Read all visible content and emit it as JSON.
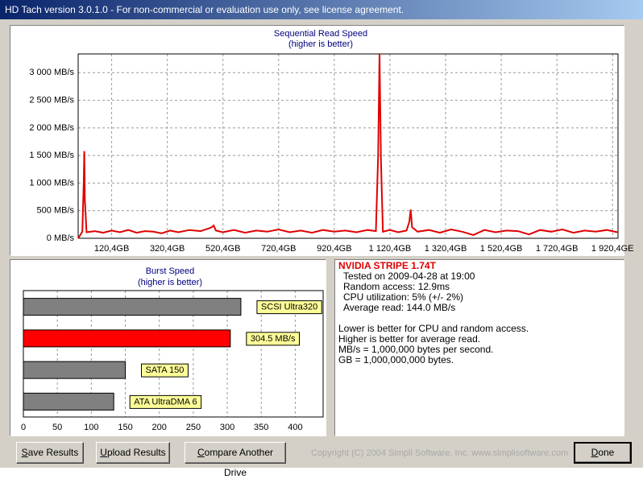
{
  "window": {
    "title": "HD Tach version 3.0.1.0  - For non-commercial or evaluation use only, see license agreement."
  },
  "chart_data": [
    {
      "type": "line",
      "title": "Sequential Read Speed",
      "subtitle": "(higher is better)",
      "color": "#e00000",
      "grid": true,
      "x": [
        0,
        15,
        20,
        22,
        24,
        30,
        60,
        90,
        120,
        150,
        180,
        210,
        240,
        270,
        300,
        330,
        360,
        400,
        440,
        470,
        480,
        487,
        495,
        520,
        560,
        600,
        640,
        680,
        720,
        760,
        800,
        840,
        880,
        920,
        960,
        1000,
        1040,
        1070,
        1078,
        1083,
        1088,
        1095,
        1120,
        1150,
        1180,
        1190,
        1195,
        1200,
        1220,
        1260,
        1300,
        1340,
        1380,
        1420,
        1460,
        1500,
        1540,
        1580,
        1620,
        1660,
        1700,
        1740,
        1780,
        1820,
        1860,
        1900,
        1938
      ],
      "values": [
        0,
        120,
        1000,
        1580,
        700,
        110,
        130,
        100,
        140,
        110,
        150,
        100,
        130,
        120,
        90,
        140,
        110,
        150,
        130,
        180,
        200,
        230,
        140,
        110,
        150,
        100,
        140,
        120,
        160,
        110,
        140,
        100,
        150,
        120,
        140,
        110,
        150,
        130,
        1500,
        3340,
        1400,
        120,
        150,
        110,
        140,
        300,
        520,
        200,
        120,
        150,
        100,
        160,
        120,
        60,
        150,
        110,
        140,
        130,
        70,
        150,
        120,
        160,
        100,
        140,
        120,
        150,
        110
      ],
      "xlim": [
        0,
        1940
      ],
      "ylim": [
        0,
        3340
      ],
      "xticks": [
        {
          "value": 120.4,
          "label": "120,4GB"
        },
        {
          "value": 320.4,
          "label": "320,4GB"
        },
        {
          "value": 520.4,
          "label": "520,4GB"
        },
        {
          "value": 720.4,
          "label": "720,4GB"
        },
        {
          "value": 920.4,
          "label": "920,4GB"
        },
        {
          "value": 1120.4,
          "label": "1 120,4GB"
        },
        {
          "value": 1320.4,
          "label": "1 320,4GB"
        },
        {
          "value": 1520.4,
          "label": "1 520,4GB"
        },
        {
          "value": 1720.4,
          "label": "1 720,4GB"
        },
        {
          "value": 1920.4,
          "label": "1 920,4GE"
        }
      ],
      "yticks": [
        {
          "value": 0,
          "label": "0 MB/s"
        },
        {
          "value": 500,
          "label": "500 MB/s"
        },
        {
          "value": 1000,
          "label": "1 000 MB/s"
        },
        {
          "value": 1500,
          "label": "1 500 MB/s"
        },
        {
          "value": 2000,
          "label": "2 000 MB/s"
        },
        {
          "value": 2500,
          "label": "2 500 MB/s"
        },
        {
          "value": 3000,
          "label": "3 000 MB/s"
        }
      ]
    },
    {
      "type": "hbar",
      "title": "Burst Speed",
      "subtitle": "(higher is better)",
      "grid": true,
      "labels": [
        "SCSI Ultra320",
        "304.5 MB/s",
        "SATA 150",
        "ATA UltraDMA 6"
      ],
      "values": [
        320,
        304.5,
        150,
        133
      ],
      "colors": [
        "#808080",
        "#ff0000",
        "#808080",
        "#808080"
      ],
      "xlim": [
        0,
        441
      ],
      "xticks": [
        0,
        50,
        100,
        150,
        200,
        250,
        300,
        350,
        400
      ]
    }
  ],
  "info": {
    "drive": "NVIDIA STRIPE 1.74T",
    "details": [
      "Tested on 2009-04-28 at 19:00",
      "Random access: 12.9ms",
      "CPU utilization: 5% (+/- 2%)",
      "Average read: 144.0 MB/s"
    ],
    "notes": [
      "Lower is better for CPU and random access.",
      "Higher is better for average read.",
      "MB/s = 1,000,000 bytes per second.",
      "GB = 1,000,000,000 bytes."
    ]
  },
  "buttons": [
    "Save Results",
    "Upload Results",
    "Compare Another Drive",
    "Done"
  ],
  "copyright": "Copyright (C) 2004 Simpli Software, Inc. www.simplisoftware.com"
}
